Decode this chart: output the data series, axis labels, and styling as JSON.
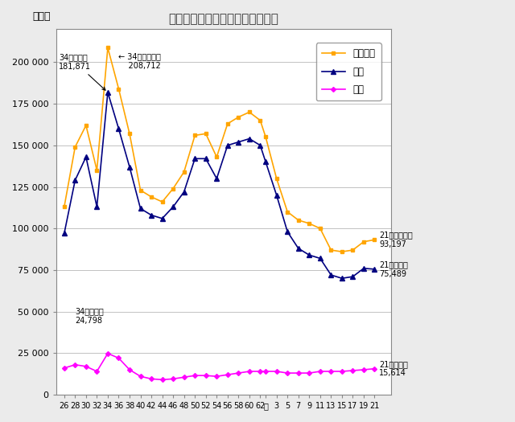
{
  "title": "公立小学校卒業者の進路状況推移",
  "ylabel": "（人）",
  "x_labels": [
    "26",
    "28",
    "30",
    "32",
    "34",
    "36",
    "38",
    "40",
    "42",
    "44",
    "46",
    "48",
    "50",
    "52",
    "54",
    "56",
    "58",
    "60",
    "62",
    "元",
    "3",
    "5",
    "7",
    "9",
    "11",
    "13",
    "15",
    "17",
    "19",
    "21"
  ],
  "x_positions": [
    26,
    28,
    30,
    32,
    34,
    36,
    38,
    40,
    42,
    44,
    46,
    48,
    50,
    52,
    54,
    56,
    58,
    60,
    62,
    63,
    65,
    67,
    69,
    71,
    73,
    75,
    77,
    79,
    81,
    83
  ],
  "sotsugyosha": [
    113000,
    149000,
    162000,
    135000,
    208712,
    184000,
    157000,
    123000,
    119000,
    116000,
    124000,
    134000,
    156000,
    157000,
    143000,
    163000,
    167000,
    170000,
    165000,
    155000,
    130000,
    110000,
    105000,
    103000,
    100000,
    87000,
    86000,
    87000,
    92000,
    93197
  ],
  "koritsu": [
    97000,
    129000,
    143000,
    113000,
    181871,
    160000,
    137000,
    112000,
    108000,
    106000,
    113000,
    122000,
    142000,
    142000,
    130000,
    150000,
    152000,
    154000,
    150000,
    140000,
    120000,
    98000,
    88000,
    84000,
    82000,
    72000,
    70000,
    71000,
    76000,
    75489
  ],
  "shiritsu": [
    16000,
    18000,
    17000,
    14000,
    24798,
    22000,
    15000,
    11000,
    9500,
    9000,
    9500,
    10500,
    11500,
    11500,
    11000,
    12000,
    13000,
    14000,
    14000,
    14000,
    14000,
    13000,
    13000,
    13000,
    14000,
    14000,
    14000,
    14500,
    15000,
    15614
  ],
  "sotsugyosha_color": "#FFA500",
  "koritsu_color": "#000080",
  "shiritsu_color": "#FF00FF",
  "bg_color": "#EBEBEB",
  "plot_bg": "#FFFFFF",
  "ylim_max": 220000,
  "ytick_vals": [
    0,
    25000,
    50000,
    75000,
    100000,
    125000,
    150000,
    175000,
    200000
  ],
  "ytick_labels": [
    "0",
    "25 000",
    "50 000",
    "75 000",
    "100 000",
    "125 000",
    "150 000",
    "175 000",
    "200 000"
  ],
  "legend_labels": [
    "卒業者計",
    "公立",
    "私立"
  ],
  "ann_sotsu34_text": "34年度卒業者\n208,712",
  "ann_koritsu34_text": "34年度公立\n181,871",
  "ann_shiritsu34_text": "34年度私立\n24,798",
  "ann_sotsu21_text": "21年度卒業者\n93,197",
  "ann_koritsu21_text": "21年度公立\n75,489",
  "ann_shiritsu21_text": "21年度私立\n15,614",
  "grid_color": "#AAAAAA",
  "spine_color": "#888888"
}
